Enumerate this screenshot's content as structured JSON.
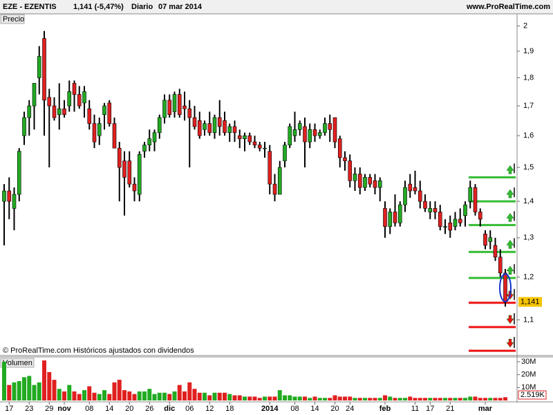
{
  "chart_data": {
    "type": "candlestick",
    "title": "EZE - EZENTIS",
    "quote": "1,141 (-5,47%)",
    "period": "Diario",
    "date": "07 mar 2014",
    "site": "www.ProRealTime.com",
    "panel_label": "Precio",
    "footnote": "© ProRealTime.com Históricos ajustados con dividendos",
    "log_scale": true,
    "up_color": "#22aa22",
    "down_color": "#e02020",
    "ylim": [
      1.026,
      2.05
    ],
    "yticks": [
      2,
      {
        "value": 1.9,
        "label": "1,9"
      },
      {
        "value": 1.8,
        "label": "1,8"
      },
      {
        "value": 1.7,
        "label": "1,7"
      },
      {
        "value": 1.6,
        "label": "1,6"
      },
      {
        "value": 1.5,
        "label": "1,5"
      },
      {
        "value": 1.4,
        "label": "1,4"
      },
      {
        "value": 1.3,
        "label": "1,3"
      },
      {
        "value": 1.2,
        "label": "1,2"
      },
      {
        "value": 1.1,
        "label": "1,1"
      }
    ],
    "last_label": "1,141",
    "categories": [
      null,
      "17",
      null,
      null,
      null,
      "23",
      null,
      null,
      null,
      "29",
      null,
      null,
      "nov",
      null,
      null,
      null,
      null,
      "08",
      null,
      null,
      null,
      "14",
      null,
      null,
      null,
      "20",
      null,
      null,
      null,
      "26",
      null,
      null,
      null,
      "dic",
      null,
      null,
      null,
      "06",
      null,
      null,
      null,
      "12",
      null,
      null,
      null,
      "18",
      null,
      null,
      null,
      null,
      null,
      null,
      null,
      "2014",
      null,
      null,
      null,
      null,
      "08",
      null,
      null,
      null,
      "14",
      null,
      null,
      null,
      "20",
      null,
      null,
      "24",
      null,
      null,
      null,
      null,
      null,
      null,
      "feb",
      null,
      null,
      null,
      null,
      null,
      "11",
      null,
      null,
      "17",
      null,
      null,
      null,
      "21",
      null,
      null,
      null,
      null,
      null,
      null,
      "mar",
      null,
      null,
      null,
      null
    ],
    "ohlc": [
      [
        1.4,
        1.45,
        1.28,
        1.43
      ],
      [
        1.43,
        1.47,
        1.35,
        1.4
      ],
      [
        1.38,
        1.44,
        1.32,
        1.42
      ],
      [
        1.42,
        1.56,
        1.4,
        1.55
      ],
      [
        1.6,
        1.68,
        1.57,
        1.66
      ],
      [
        1.66,
        1.72,
        1.6,
        1.7
      ],
      [
        1.7,
        1.78,
        1.62,
        1.78
      ],
      [
        1.8,
        1.92,
        1.74,
        1.88
      ],
      [
        1.95,
        1.98,
        1.6,
        1.72
      ],
      [
        1.73,
        1.76,
        1.5,
        1.7
      ],
      [
        1.7,
        1.73,
        1.65,
        1.66
      ],
      [
        1.67,
        1.78,
        1.62,
        1.69
      ],
      [
        1.69,
        1.72,
        1.66,
        1.67
      ],
      [
        1.7,
        1.79,
        1.68,
        1.75
      ],
      [
        1.78,
        1.79,
        1.68,
        1.74
      ],
      [
        1.74,
        1.77,
        1.69,
        1.7
      ],
      [
        1.71,
        1.77,
        1.66,
        1.75
      ],
      [
        1.69,
        1.72,
        1.62,
        1.64
      ],
      [
        1.64,
        1.67,
        1.56,
        1.58
      ],
      [
        1.6,
        1.66,
        1.57,
        1.64
      ],
      [
        1.67,
        1.71,
        1.62,
        1.7
      ],
      [
        1.71,
        1.72,
        1.63,
        1.64
      ],
      [
        1.64,
        1.66,
        1.56,
        1.56
      ],
      [
        1.56,
        1.58,
        1.4,
        1.5
      ],
      [
        1.52,
        1.55,
        1.36,
        1.47
      ],
      [
        1.52,
        1.55,
        1.44,
        1.45
      ],
      [
        1.45,
        1.47,
        1.4,
        1.43
      ],
      [
        1.42,
        1.55,
        1.4,
        1.54
      ],
      [
        1.55,
        1.58,
        1.53,
        1.57
      ],
      [
        1.57,
        1.62,
        1.55,
        1.59
      ],
      [
        1.58,
        1.62,
        1.55,
        1.61
      ],
      [
        1.61,
        1.67,
        1.59,
        1.66
      ],
      [
        1.66,
        1.74,
        1.64,
        1.72
      ],
      [
        1.72,
        1.74,
        1.66,
        1.67
      ],
      [
        1.68,
        1.75,
        1.66,
        1.74
      ],
      [
        1.74,
        1.76,
        1.66,
        1.67
      ],
      [
        1.7,
        1.75,
        1.65,
        1.69
      ],
      [
        1.69,
        1.72,
        1.5,
        1.66
      ],
      [
        1.66,
        1.7,
        1.62,
        1.63
      ],
      [
        1.65,
        1.68,
        1.59,
        1.6
      ],
      [
        1.62,
        1.65,
        1.6,
        1.64
      ],
      [
        1.64,
        1.68,
        1.6,
        1.61
      ],
      [
        1.61,
        1.67,
        1.59,
        1.66
      ],
      [
        1.66,
        1.72,
        1.6,
        1.63
      ],
      [
        1.65,
        1.68,
        1.6,
        1.61
      ],
      [
        1.61,
        1.64,
        1.58,
        1.63
      ],
      [
        1.63,
        1.65,
        1.58,
        1.61
      ],
      [
        1.6,
        1.62,
        1.56,
        1.59
      ],
      [
        1.59,
        1.61,
        1.55,
        1.6
      ],
      [
        1.6,
        1.61,
        1.57,
        1.58
      ],
      [
        1.58,
        1.6,
        1.56,
        1.57
      ],
      [
        1.57,
        1.58,
        1.55,
        1.56
      ],
      [
        1.56,
        1.58,
        1.53,
        1.56
      ],
      [
        1.55,
        1.57,
        1.42,
        1.45
      ],
      [
        1.45,
        1.48,
        1.4,
        1.42
      ],
      [
        1.42,
        1.52,
        1.42,
        1.5
      ],
      [
        1.52,
        1.58,
        1.5,
        1.57
      ],
      [
        1.57,
        1.64,
        1.56,
        1.63
      ],
      [
        1.6,
        1.68,
        1.58,
        1.62
      ],
      [
        1.62,
        1.65,
        1.6,
        1.64
      ],
      [
        1.63,
        1.66,
        1.5,
        1.58
      ],
      [
        1.58,
        1.64,
        1.56,
        1.62
      ],
      [
        1.62,
        1.64,
        1.58,
        1.6
      ],
      [
        1.6,
        1.62,
        1.59,
        1.61
      ],
      [
        1.61,
        1.66,
        1.6,
        1.64
      ],
      [
        1.64,
        1.67,
        1.58,
        1.62
      ],
      [
        1.66,
        1.66,
        1.56,
        1.58
      ],
      [
        1.59,
        1.6,
        1.5,
        1.53
      ],
      [
        1.53,
        1.55,
        1.49,
        1.52
      ],
      [
        1.52,
        1.54,
        1.44,
        1.46
      ],
      [
        1.46,
        1.5,
        1.43,
        1.48
      ],
      [
        1.48,
        1.5,
        1.42,
        1.44
      ],
      [
        1.44,
        1.48,
        1.43,
        1.47
      ],
      [
        1.47,
        1.48,
        1.44,
        1.45
      ],
      [
        1.46,
        1.48,
        1.42,
        1.44
      ],
      [
        1.44,
        1.47,
        1.4,
        1.46
      ],
      [
        1.38,
        1.4,
        1.3,
        1.33
      ],
      [
        1.33,
        1.38,
        1.31,
        1.37
      ],
      [
        1.37,
        1.42,
        1.33,
        1.34
      ],
      [
        1.34,
        1.4,
        1.33,
        1.39
      ],
      [
        1.39,
        1.46,
        1.37,
        1.44
      ],
      [
        1.45,
        1.48,
        1.41,
        1.43
      ],
      [
        1.44,
        1.49,
        1.42,
        1.43
      ],
      [
        1.43,
        1.46,
        1.38,
        1.4
      ],
      [
        1.4,
        1.42,
        1.37,
        1.38
      ],
      [
        1.37,
        1.4,
        1.35,
        1.38
      ],
      [
        1.38,
        1.4,
        1.35,
        1.37
      ],
      [
        1.37,
        1.39,
        1.32,
        1.33
      ],
      [
        1.33,
        1.35,
        1.31,
        1.33
      ],
      [
        1.34,
        1.36,
        1.3,
        1.32
      ],
      [
        1.33,
        1.37,
        1.32,
        1.35
      ],
      [
        1.35,
        1.38,
        1.33,
        1.34
      ],
      [
        1.36,
        1.4,
        1.33,
        1.39
      ],
      [
        1.4,
        1.46,
        1.38,
        1.44
      ],
      [
        1.44,
        1.45,
        1.36,
        1.37
      ],
      [
        1.37,
        1.38,
        1.33,
        1.35
      ],
      [
        1.31,
        1.32,
        1.27,
        1.28
      ],
      [
        1.29,
        1.32,
        1.27,
        1.3
      ],
      [
        1.28,
        1.3,
        1.24,
        1.25
      ],
      [
        1.25,
        1.27,
        1.2,
        1.21
      ],
      [
        1.21,
        1.22,
        1.13,
        1.141
      ]
    ],
    "levels": [
      {
        "value": 1.47,
        "color": "#33bb33"
      },
      {
        "value": 1.4,
        "color": "#33bb33"
      },
      {
        "value": 1.334,
        "color": "#33bb33"
      },
      {
        "value": 1.263,
        "color": "#33bb33"
      },
      {
        "value": 1.198,
        "color": "#33bb33"
      },
      {
        "value": 1.139,
        "color": "#ee1111"
      },
      {
        "value": 1.084,
        "color": "#ee1111"
      },
      {
        "value": 1.033,
        "color": "#ee1111"
      }
    ],
    "volume": {
      "label": "Volumen",
      "ylim": [
        0,
        33.2
      ],
      "yticks": [
        {
          "value": 30,
          "label": "30M"
        },
        {
          "value": 20,
          "label": "20M"
        },
        {
          "value": 10,
          "label": "10M"
        }
      ],
      "last_label": "2.519K",
      "values": [
        30,
        12,
        14,
        15,
        18,
        19,
        12,
        14,
        31,
        22,
        16,
        9,
        7,
        12,
        7,
        5,
        8,
        11,
        6,
        5,
        8,
        5,
        14,
        16,
        8,
        7,
        5,
        7,
        7,
        9,
        5,
        6,
        6,
        5,
        7,
        12,
        7,
        14,
        9,
        6,
        6,
        4,
        6,
        6,
        6,
        5,
        4,
        4,
        3,
        3,
        3,
        2,
        3,
        3,
        3,
        8,
        4,
        4,
        3,
        3,
        3,
        2,
        3,
        2,
        2,
        2,
        4,
        3,
        3,
        3,
        2,
        2,
        2,
        2,
        2,
        2,
        4,
        3,
        2,
        2,
        2,
        3,
        2,
        2,
        2,
        2,
        2,
        2,
        2,
        2,
        2,
        2,
        2,
        3,
        3,
        2,
        2,
        2,
        2,
        2,
        2.519
      ]
    }
  }
}
